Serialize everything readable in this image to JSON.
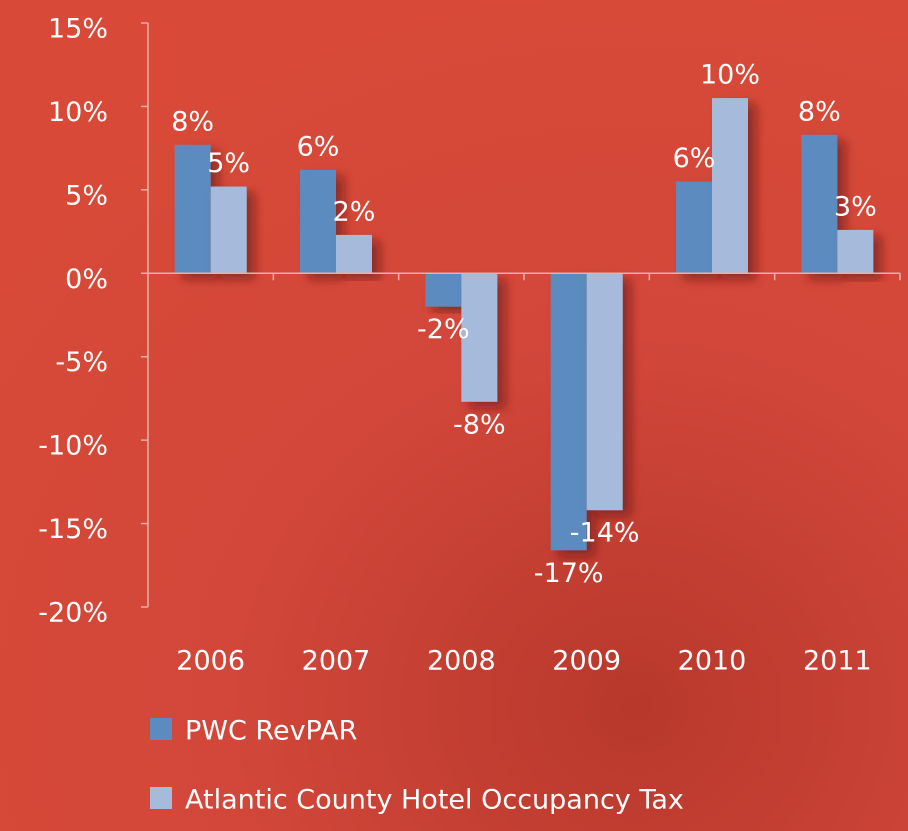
{
  "chart_data": {
    "type": "bar",
    "categories": [
      "2006",
      "2007",
      "2008",
      "2009",
      "2010",
      "2011"
    ],
    "series": [
      {
        "name": "PWC RevPAR",
        "color": "#5b8bbf",
        "values": [
          7.7,
          6.2,
          -2.0,
          -16.6,
          5.5,
          8.3
        ],
        "value_labels": [
          "8%",
          "6%",
          "-2%",
          "-17%",
          "6%",
          "8%"
        ]
      },
      {
        "name": "Atlantic County Hotel Occupancy Tax",
        "color": "#a6bbdb",
        "values": [
          5.2,
          2.3,
          -7.7,
          -14.2,
          10.5,
          2.6
        ],
        "value_labels": [
          "5%",
          "2%",
          "-8%",
          "-14%",
          "10%",
          "3%"
        ]
      }
    ],
    "ylim": [
      -20,
      15
    ],
    "yticks": [
      {
        "value": -20,
        "label": "-20%"
      },
      {
        "value": -15,
        "label": "-15%"
      },
      {
        "value": -10,
        "label": "-10%"
      },
      {
        "value": -5,
        "label": "-5%"
      },
      {
        "value": 0,
        "label": "0%"
      },
      {
        "value": 5,
        "label": "5%"
      },
      {
        "value": 10,
        "label": "10%"
      },
      {
        "value": 15,
        "label": "15%"
      }
    ],
    "legend": "bottom"
  }
}
